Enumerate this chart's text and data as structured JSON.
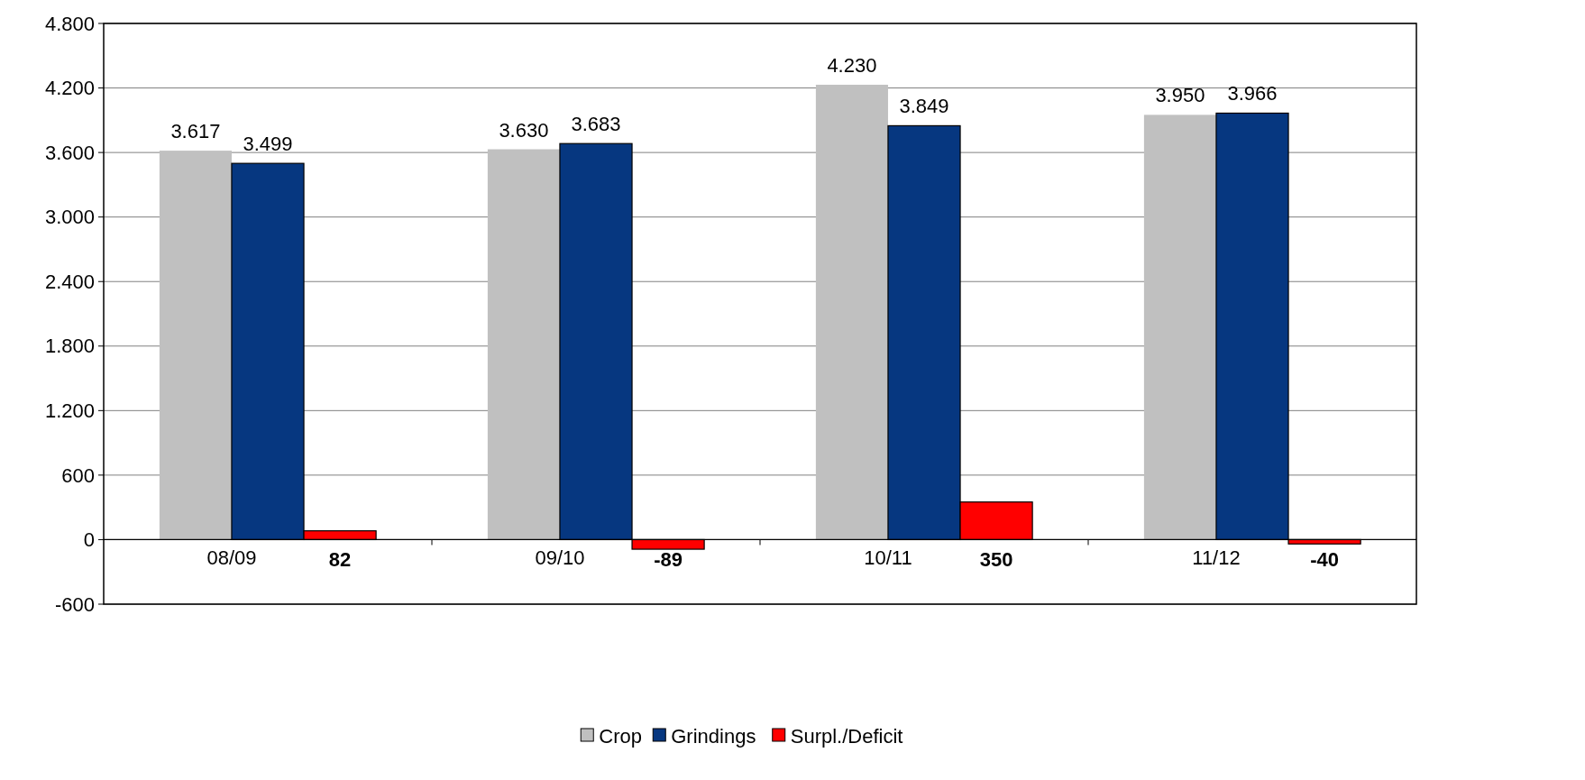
{
  "chart_data": {
    "type": "bar",
    "categories": [
      "08/09",
      "09/10",
      "10/11",
      "11/12"
    ],
    "series": [
      {
        "name": "Crop",
        "color": "#c0c0c0",
        "values": [
          3617,
          3630,
          4230,
          3950
        ],
        "value_labels": [
          "3.617",
          "3.630",
          "4.230",
          "3.950"
        ]
      },
      {
        "name": "Grindings",
        "color": "#063780",
        "values": [
          3499,
          3683,
          3849,
          3966
        ],
        "value_labels": [
          "3.499",
          "3.683",
          "3.849",
          "3.966"
        ]
      },
      {
        "name": "Surpl./Deficit",
        "color": "#ff0000",
        "values": [
          82,
          -89,
          350,
          -40
        ],
        "value_labels": [
          "82",
          "-89",
          "350",
          "-40"
        ]
      }
    ],
    "ylim": [
      -600,
      4800
    ],
    "yticks": [
      {
        "value": -600,
        "label": "-600"
      },
      {
        "value": 0,
        "label": "0"
      },
      {
        "value": 600,
        "label": "600"
      },
      {
        "value": 1200,
        "label": "1.200"
      },
      {
        "value": 1800,
        "label": "1.800"
      },
      {
        "value": 2400,
        "label": "2.400"
      },
      {
        "value": 3000,
        "label": "3.000"
      },
      {
        "value": 3600,
        "label": "3.600"
      },
      {
        "value": 4200,
        "label": "4.200"
      },
      {
        "value": 4800,
        "label": "4.800"
      }
    ],
    "grid": "y",
    "legend": "bottom"
  }
}
